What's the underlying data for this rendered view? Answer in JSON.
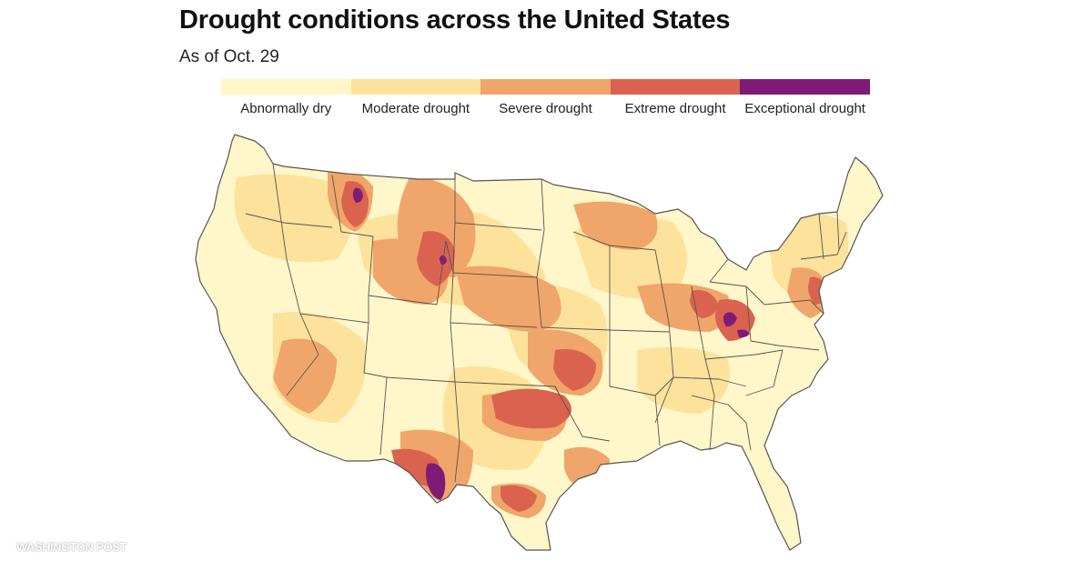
{
  "title": "Drought conditions across the United States",
  "subtitle": "As of Oct. 29",
  "legend": [
    {
      "label": "Abnormally dry",
      "color": "#fff6c9"
    },
    {
      "label": "Moderate drought",
      "color": "#fde29c"
    },
    {
      "label": "Severe drought",
      "color": "#f0a66a"
    },
    {
      "label": "Extreme drought",
      "color": "#d9634e"
    },
    {
      "label": "Exceptional drought",
      "color": "#7f1a77"
    }
  ],
  "colors": {
    "no_drought": "#ffffff",
    "state_border": "#555555"
  },
  "credit": "WASHINGTON POST"
}
